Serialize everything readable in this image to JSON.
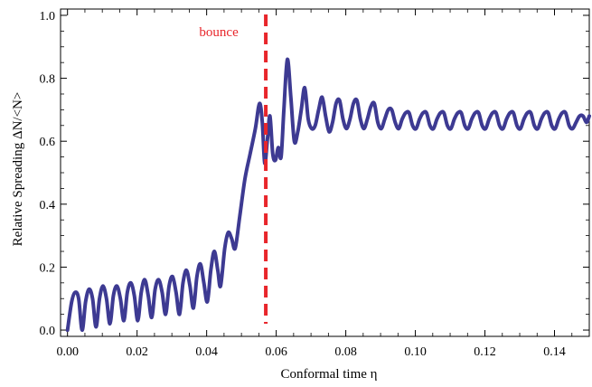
{
  "chart_data": {
    "type": "line",
    "xlabel": "Conformal time η",
    "ylabel": "Relative Spreading ΔN/<N>",
    "xlim": [
      -0.002,
      0.15
    ],
    "ylim": [
      -0.02,
      1.02
    ],
    "xticks": [
      0.0,
      0.02,
      0.04,
      0.06,
      0.08,
      0.1,
      0.12,
      0.14
    ],
    "xtick_labels": [
      "0.00",
      "0.02",
      "0.04",
      "0.06",
      "0.08",
      "0.10",
      "0.12",
      "0.14"
    ],
    "yticks": [
      0.0,
      0.2,
      0.4,
      0.6,
      0.8,
      1.0
    ],
    "ytick_labels": [
      "0.0",
      "0.2",
      "0.4",
      "0.6",
      "0.8",
      "1.0"
    ],
    "grid": false,
    "annotation": {
      "text": "bounce",
      "x": 0.057,
      "color": "#e8262b",
      "style": "dashed vertical line"
    },
    "series": [
      {
        "color": "#3d3a92",
        "points": [
          [
            0.0,
            0.0
          ],
          [
            0.0012,
            0.09
          ],
          [
            0.0022,
            0.12
          ],
          [
            0.0032,
            0.1
          ],
          [
            0.0042,
            0.0
          ],
          [
            0.0052,
            0.09
          ],
          [
            0.0062,
            0.13
          ],
          [
            0.0072,
            0.1
          ],
          [
            0.0082,
            0.01
          ],
          [
            0.0092,
            0.1
          ],
          [
            0.0102,
            0.14
          ],
          [
            0.0112,
            0.1
          ],
          [
            0.0122,
            0.02
          ],
          [
            0.0132,
            0.11
          ],
          [
            0.0142,
            0.14
          ],
          [
            0.0152,
            0.1
          ],
          [
            0.0162,
            0.03
          ],
          [
            0.0172,
            0.12
          ],
          [
            0.0182,
            0.15
          ],
          [
            0.0192,
            0.11
          ],
          [
            0.0202,
            0.03
          ],
          [
            0.0212,
            0.12
          ],
          [
            0.0222,
            0.16
          ],
          [
            0.0232,
            0.11
          ],
          [
            0.0242,
            0.04
          ],
          [
            0.0252,
            0.13
          ],
          [
            0.0262,
            0.16
          ],
          [
            0.0272,
            0.12
          ],
          [
            0.0282,
            0.05
          ],
          [
            0.0292,
            0.14
          ],
          [
            0.0302,
            0.17
          ],
          [
            0.0312,
            0.12
          ],
          [
            0.0322,
            0.05
          ],
          [
            0.0332,
            0.15
          ],
          [
            0.0342,
            0.19
          ],
          [
            0.0352,
            0.14
          ],
          [
            0.0362,
            0.07
          ],
          [
            0.0372,
            0.17
          ],
          [
            0.0382,
            0.21
          ],
          [
            0.0392,
            0.15
          ],
          [
            0.0402,
            0.09
          ],
          [
            0.0412,
            0.19
          ],
          [
            0.0422,
            0.25
          ],
          [
            0.0432,
            0.19
          ],
          [
            0.044,
            0.14
          ],
          [
            0.0452,
            0.26
          ],
          [
            0.0462,
            0.31
          ],
          [
            0.0472,
            0.29
          ],
          [
            0.0482,
            0.26
          ],
          [
            0.0495,
            0.36
          ],
          [
            0.051,
            0.48
          ],
          [
            0.0525,
            0.56
          ],
          [
            0.054,
            0.64
          ],
          [
            0.0552,
            0.72
          ],
          [
            0.056,
            0.66
          ],
          [
            0.0567,
            0.53
          ],
          [
            0.0575,
            0.61
          ],
          [
            0.0582,
            0.68
          ],
          [
            0.059,
            0.56
          ],
          [
            0.0598,
            0.54
          ],
          [
            0.0606,
            0.58
          ],
          [
            0.0614,
            0.55
          ],
          [
            0.0622,
            0.7
          ],
          [
            0.0632,
            0.86
          ],
          [
            0.0642,
            0.74
          ],
          [
            0.0652,
            0.6
          ],
          [
            0.0662,
            0.63
          ],
          [
            0.0672,
            0.7
          ],
          [
            0.0682,
            0.77
          ],
          [
            0.0692,
            0.67
          ],
          [
            0.0702,
            0.64
          ],
          [
            0.0712,
            0.65
          ],
          [
            0.0722,
            0.7
          ],
          [
            0.0732,
            0.74
          ],
          [
            0.0742,
            0.68
          ],
          [
            0.0752,
            0.63
          ],
          [
            0.0762,
            0.66
          ],
          [
            0.0772,
            0.72
          ],
          [
            0.0782,
            0.73
          ],
          [
            0.0792,
            0.67
          ],
          [
            0.0802,
            0.64
          ],
          [
            0.0812,
            0.67
          ],
          [
            0.0822,
            0.72
          ],
          [
            0.0832,
            0.73
          ],
          [
            0.0842,
            0.67
          ],
          [
            0.0852,
            0.64
          ],
          [
            0.0862,
            0.67
          ],
          [
            0.0872,
            0.71
          ],
          [
            0.0882,
            0.72
          ],
          [
            0.0892,
            0.66
          ],
          [
            0.0902,
            0.64
          ],
          [
            0.0912,
            0.67
          ],
          [
            0.0922,
            0.7
          ],
          [
            0.0932,
            0.7
          ],
          [
            0.0942,
            0.66
          ],
          [
            0.0952,
            0.64
          ],
          [
            0.0962,
            0.67
          ],
          [
            0.0972,
            0.69
          ],
          [
            0.0982,
            0.69
          ],
          [
            0.0992,
            0.65
          ],
          [
            0.1002,
            0.64
          ],
          [
            0.1012,
            0.67
          ],
          [
            0.1022,
            0.69
          ],
          [
            0.1032,
            0.69
          ],
          [
            0.1042,
            0.65
          ],
          [
            0.1052,
            0.64
          ],
          [
            0.1062,
            0.67
          ],
          [
            0.1072,
            0.69
          ],
          [
            0.1082,
            0.69
          ],
          [
            0.1092,
            0.65
          ],
          [
            0.1102,
            0.64
          ],
          [
            0.1112,
            0.67
          ],
          [
            0.1122,
            0.69
          ],
          [
            0.1132,
            0.69
          ],
          [
            0.1142,
            0.65
          ],
          [
            0.1152,
            0.64
          ],
          [
            0.1162,
            0.67
          ],
          [
            0.1172,
            0.69
          ],
          [
            0.1182,
            0.69
          ],
          [
            0.1192,
            0.65
          ],
          [
            0.1202,
            0.64
          ],
          [
            0.1212,
            0.67
          ],
          [
            0.1222,
            0.69
          ],
          [
            0.1232,
            0.69
          ],
          [
            0.1242,
            0.65
          ],
          [
            0.1252,
            0.64
          ],
          [
            0.1262,
            0.67
          ],
          [
            0.1272,
            0.69
          ],
          [
            0.1282,
            0.69
          ],
          [
            0.1292,
            0.65
          ],
          [
            0.1302,
            0.64
          ],
          [
            0.1312,
            0.67
          ],
          [
            0.1322,
            0.69
          ],
          [
            0.1332,
            0.69
          ],
          [
            0.1342,
            0.65
          ],
          [
            0.1352,
            0.64
          ],
          [
            0.1362,
            0.67
          ],
          [
            0.1372,
            0.69
          ],
          [
            0.1382,
            0.69
          ],
          [
            0.1392,
            0.65
          ],
          [
            0.1402,
            0.64
          ],
          [
            0.1412,
            0.67
          ],
          [
            0.1422,
            0.69
          ],
          [
            0.1432,
            0.69
          ],
          [
            0.1442,
            0.65
          ],
          [
            0.1452,
            0.64
          ],
          [
            0.1462,
            0.66
          ],
          [
            0.1472,
            0.68
          ],
          [
            0.1482,
            0.68
          ],
          [
            0.1492,
            0.66
          ],
          [
            0.15,
            0.68
          ]
        ]
      }
    ]
  }
}
